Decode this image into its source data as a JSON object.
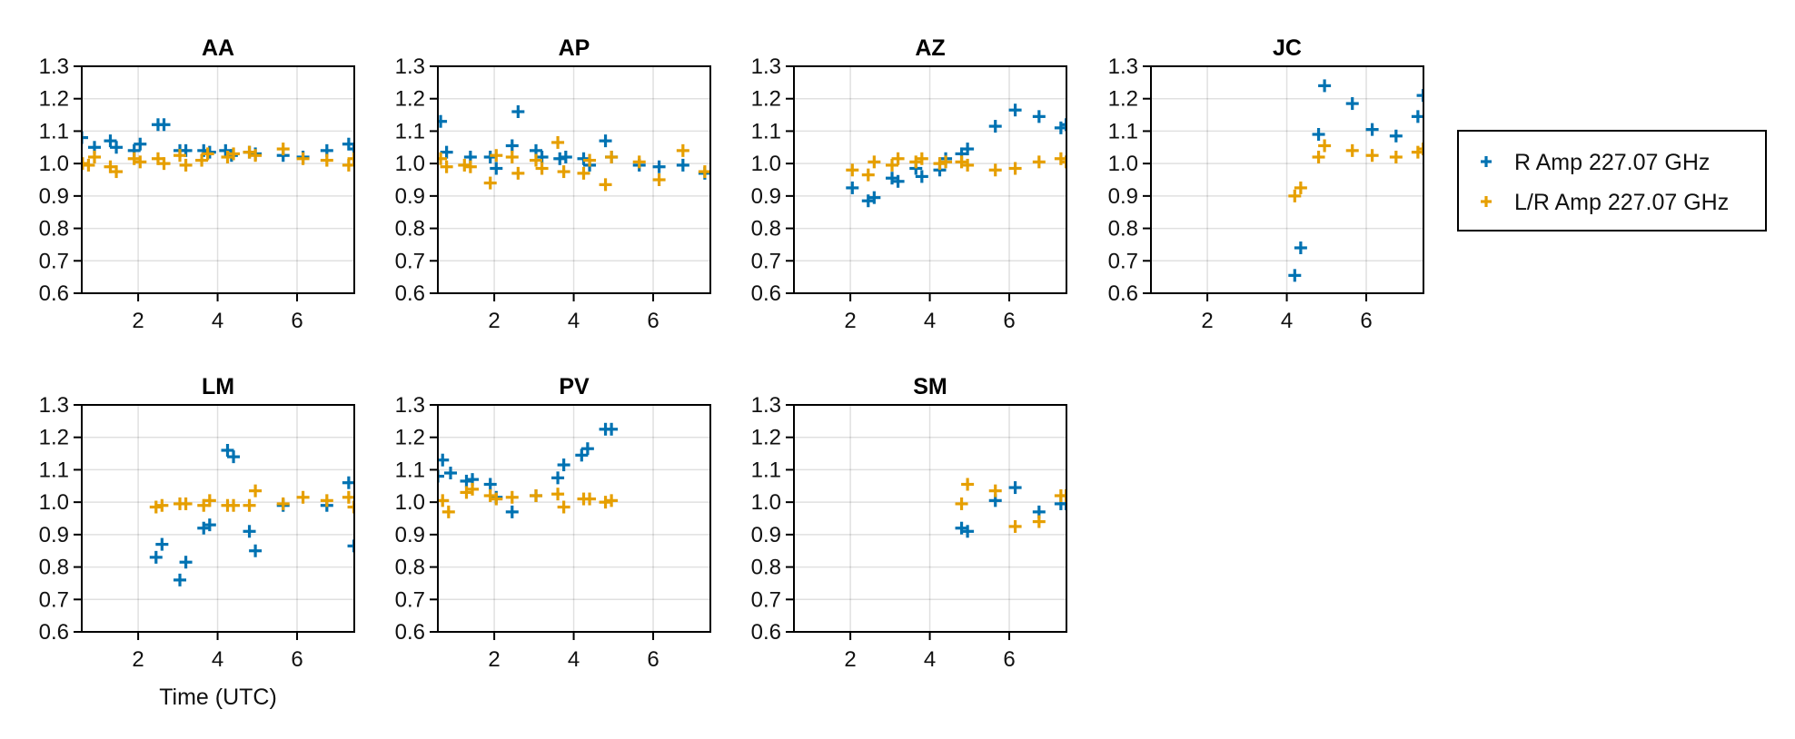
{
  "chart_data": {
    "type": "scatter",
    "xlabel": "Time (UTC)",
    "ylabel": "",
    "xlim": [
      0.58,
      7.44
    ],
    "ylim": [
      0.6,
      1.3
    ],
    "xticks": [
      "2",
      "4",
      "6"
    ],
    "xtick_values": [
      2,
      4,
      6
    ],
    "yticks": [
      "0.6",
      "0.7",
      "0.8",
      "0.9",
      "1.0",
      "1.1",
      "1.2",
      "1.3"
    ],
    "ytick_values": [
      0.6,
      0.7,
      0.8,
      0.9,
      1.0,
      1.1,
      1.2,
      1.3
    ],
    "grid": true,
    "legend": {
      "placement": "right",
      "entries": [
        {
          "name": "R Amp 227.07 GHz",
          "color": "#0072b2",
          "marker": "cross"
        },
        {
          "name": "L/R Amp 227.07 GHz",
          "color": "#e69f00",
          "marker": "cross"
        }
      ]
    },
    "panels": [
      {
        "title": "AA",
        "series": [
          {
            "name": "R Amp 227.07 GHz",
            "points": [
              [
                0.58,
                1.08
              ],
              [
                0.9,
                1.05
              ],
              [
                1.3,
                1.07
              ],
              [
                1.45,
                1.05
              ],
              [
                1.9,
                1.04
              ],
              [
                2.05,
                1.06
              ],
              [
                2.5,
                1.12
              ],
              [
                2.65,
                1.12
              ],
              [
                3.05,
                1.04
              ],
              [
                3.2,
                1.04
              ],
              [
                3.65,
                1.04
              ],
              [
                3.8,
                1.035
              ],
              [
                4.2,
                1.04
              ],
              [
                4.35,
                1.025
              ],
              [
                4.8,
                1.035
              ],
              [
                4.95,
                1.03
              ],
              [
                5.65,
                1.025
              ],
              [
                6.15,
                1.02
              ],
              [
                6.75,
                1.04
              ],
              [
                7.3,
                1.06
              ],
              [
                7.43,
                1.045
              ]
            ]
          },
          {
            "name": "L/R Amp 227.07 GHz",
            "points": [
              [
                0.6,
                1.0
              ],
              [
                0.75,
                0.995
              ],
              [
                0.9,
                1.02
              ],
              [
                1.3,
                0.99
              ],
              [
                1.45,
                0.975
              ],
              [
                1.9,
                1.015
              ],
              [
                2.05,
                1.005
              ],
              [
                2.5,
                1.015
              ],
              [
                2.65,
                1.0
              ],
              [
                3.05,
                1.025
              ],
              [
                3.2,
                0.995
              ],
              [
                3.6,
                1.01
              ],
              [
                3.75,
                1.03
              ],
              [
                4.25,
                1.02
              ],
              [
                4.4,
                1.03
              ],
              [
                4.8,
                1.035
              ],
              [
                4.95,
                1.025
              ],
              [
                5.65,
                1.045
              ],
              [
                6.15,
                1.015
              ],
              [
                6.75,
                1.01
              ],
              [
                7.3,
                0.995
              ],
              [
                7.43,
                1.015
              ]
            ]
          }
        ]
      },
      {
        "title": "AP",
        "series": [
          {
            "name": "R Amp 227.07 GHz",
            "points": [
              [
                0.65,
                1.13
              ],
              [
                0.8,
                1.035
              ],
              [
                1.4,
                1.02
              ],
              [
                1.9,
                1.02
              ],
              [
                2.05,
                0.985
              ],
              [
                2.45,
                1.055
              ],
              [
                2.6,
                1.16
              ],
              [
                3.05,
                1.04
              ],
              [
                3.2,
                1.02
              ],
              [
                3.65,
                1.015
              ],
              [
                3.8,
                1.02
              ],
              [
                4.25,
                1.015
              ],
              [
                4.4,
                0.995
              ],
              [
                4.8,
                1.07
              ],
              [
                4.95,
                1.02
              ],
              [
                5.65,
                0.995
              ],
              [
                6.15,
                0.99
              ],
              [
                6.75,
                0.995
              ],
              [
                7.3,
                0.97
              ]
            ]
          },
          {
            "name": "L/R Amp 227.07 GHz",
            "points": [
              [
                0.65,
                1.015
              ],
              [
                0.8,
                0.99
              ],
              [
                1.25,
                0.995
              ],
              [
                1.4,
                0.99
              ],
              [
                1.9,
                0.94
              ],
              [
                2.05,
                1.025
              ],
              [
                2.45,
                1.02
              ],
              [
                2.6,
                0.97
              ],
              [
                3.05,
                1.01
              ],
              [
                3.2,
                0.985
              ],
              [
                3.6,
                1.065
              ],
              [
                3.75,
                0.975
              ],
              [
                4.25,
                0.97
              ],
              [
                4.4,
                1.01
              ],
              [
                4.8,
                0.935
              ],
              [
                4.95,
                1.02
              ],
              [
                5.65,
                1.005
              ],
              [
                6.15,
                0.95
              ],
              [
                6.75,
                1.04
              ],
              [
                7.3,
                0.975
              ]
            ]
          }
        ]
      },
      {
        "title": "AZ",
        "series": [
          {
            "name": "R Amp 227.07 GHz",
            "points": [
              [
                2.05,
                0.925
              ],
              [
                2.45,
                0.885
              ],
              [
                2.6,
                0.895
              ],
              [
                3.05,
                0.955
              ],
              [
                3.2,
                0.945
              ],
              [
                3.65,
                0.985
              ],
              [
                3.8,
                0.96
              ],
              [
                4.25,
                0.98
              ],
              [
                4.4,
                1.015
              ],
              [
                4.8,
                1.03
              ],
              [
                4.95,
                1.045
              ],
              [
                5.65,
                1.115
              ],
              [
                6.15,
                1.165
              ],
              [
                6.75,
                1.145
              ],
              [
                7.3,
                1.11
              ],
              [
                7.43,
                1.12
              ]
            ]
          },
          {
            "name": "L/R Amp 227.07 GHz",
            "points": [
              [
                2.05,
                0.98
              ],
              [
                2.45,
                0.965
              ],
              [
                2.6,
                1.005
              ],
              [
                3.05,
                0.995
              ],
              [
                3.2,
                1.015
              ],
              [
                3.65,
                1.005
              ],
              [
                3.8,
                1.015
              ],
              [
                4.25,
                1.0
              ],
              [
                4.4,
                1.005
              ],
              [
                4.8,
                1.005
              ],
              [
                4.95,
                0.995
              ],
              [
                5.65,
                0.98
              ],
              [
                6.15,
                0.985
              ],
              [
                6.75,
                1.005
              ],
              [
                7.3,
                1.015
              ],
              [
                7.43,
                1.005
              ]
            ]
          }
        ]
      },
      {
        "title": "JC",
        "series": [
          {
            "name": "R Amp 227.07 GHz",
            "points": [
              [
                4.2,
                0.655
              ],
              [
                4.35,
                0.74
              ],
              [
                4.8,
                1.09
              ],
              [
                4.95,
                1.24
              ],
              [
                5.65,
                1.185
              ],
              [
                6.15,
                1.105
              ],
              [
                6.75,
                1.085
              ],
              [
                7.3,
                1.145
              ],
              [
                7.43,
                1.21
              ]
            ]
          },
          {
            "name": "L/R Amp 227.07 GHz",
            "points": [
              [
                4.2,
                0.9
              ],
              [
                4.35,
                0.925
              ],
              [
                4.8,
                1.02
              ],
              [
                4.95,
                1.055
              ],
              [
                5.65,
                1.04
              ],
              [
                6.15,
                1.025
              ],
              [
                6.75,
                1.02
              ],
              [
                7.3,
                1.035
              ],
              [
                7.43,
                1.045
              ]
            ]
          }
        ]
      },
      {
        "title": "LM",
        "series": [
          {
            "name": "R Amp 227.07 GHz",
            "points": [
              [
                2.45,
                0.83
              ],
              [
                2.6,
                0.87
              ],
              [
                3.05,
                0.76
              ],
              [
                3.2,
                0.815
              ],
              [
                3.65,
                0.92
              ],
              [
                3.8,
                0.93
              ],
              [
                4.25,
                1.16
              ],
              [
                4.4,
                1.14
              ],
              [
                4.8,
                0.91
              ],
              [
                4.95,
                0.85
              ],
              [
                5.65,
                0.99
              ],
              [
                6.75,
                0.99
              ],
              [
                7.3,
                1.06
              ],
              [
                7.43,
                0.865
              ]
            ]
          },
          {
            "name": "L/R Amp 227.07 GHz",
            "points": [
              [
                2.45,
                0.985
              ],
              [
                2.6,
                0.99
              ],
              [
                3.05,
                0.995
              ],
              [
                3.2,
                0.995
              ],
              [
                3.65,
                0.99
              ],
              [
                3.8,
                1.005
              ],
              [
                4.25,
                0.99
              ],
              [
                4.4,
                0.99
              ],
              [
                4.8,
                0.99
              ],
              [
                4.95,
                1.035
              ],
              [
                5.65,
                0.995
              ],
              [
                6.15,
                1.015
              ],
              [
                6.75,
                1.005
              ],
              [
                7.3,
                1.015
              ],
              [
                7.43,
                0.985
              ]
            ]
          }
        ]
      },
      {
        "title": "PV",
        "series": [
          {
            "name": "R Amp 227.07 GHz",
            "points": [
              [
                0.58,
                1.08
              ],
              [
                0.7,
                1.13
              ],
              [
                0.9,
                1.09
              ],
              [
                1.3,
                1.065
              ],
              [
                1.45,
                1.07
              ],
              [
                1.9,
                1.055
              ],
              [
                2.05,
                1.015
              ],
              [
                2.45,
                0.97
              ],
              [
                3.05,
                1.02
              ],
              [
                3.6,
                1.075
              ],
              [
                3.75,
                1.115
              ],
              [
                4.2,
                1.145
              ],
              [
                4.35,
                1.165
              ],
              [
                4.8,
                1.225
              ],
              [
                4.95,
                1.225
              ]
            ]
          },
          {
            "name": "L/R Amp 227.07 GHz",
            "points": [
              [
                0.7,
                1.005
              ],
              [
                0.85,
                0.97
              ],
              [
                1.3,
                1.03
              ],
              [
                1.45,
                1.04
              ],
              [
                1.9,
                1.02
              ],
              [
                2.05,
                1.01
              ],
              [
                2.45,
                1.015
              ],
              [
                3.05,
                1.02
              ],
              [
                3.6,
                1.025
              ],
              [
                3.75,
                0.985
              ],
              [
                4.25,
                1.01
              ],
              [
                4.4,
                1.01
              ],
              [
                4.8,
                1.0
              ],
              [
                4.95,
                1.005
              ]
            ]
          }
        ]
      },
      {
        "title": "SM",
        "series": [
          {
            "name": "R Amp 227.07 GHz",
            "points": [
              [
                4.8,
                0.92
              ],
              [
                4.95,
                0.91
              ],
              [
                5.65,
                1.005
              ],
              [
                6.15,
                1.045
              ],
              [
                6.75,
                0.97
              ],
              [
                7.3,
                0.995
              ],
              [
                7.43,
                0.995
              ]
            ]
          },
          {
            "name": "L/R Amp 227.07 GHz",
            "points": [
              [
                4.8,
                0.995
              ],
              [
                4.95,
                1.055
              ],
              [
                5.65,
                1.035
              ],
              [
                6.15,
                0.925
              ],
              [
                6.75,
                0.94
              ],
              [
                7.3,
                1.02
              ],
              [
                7.43,
                1.02
              ]
            ]
          }
        ]
      }
    ]
  }
}
